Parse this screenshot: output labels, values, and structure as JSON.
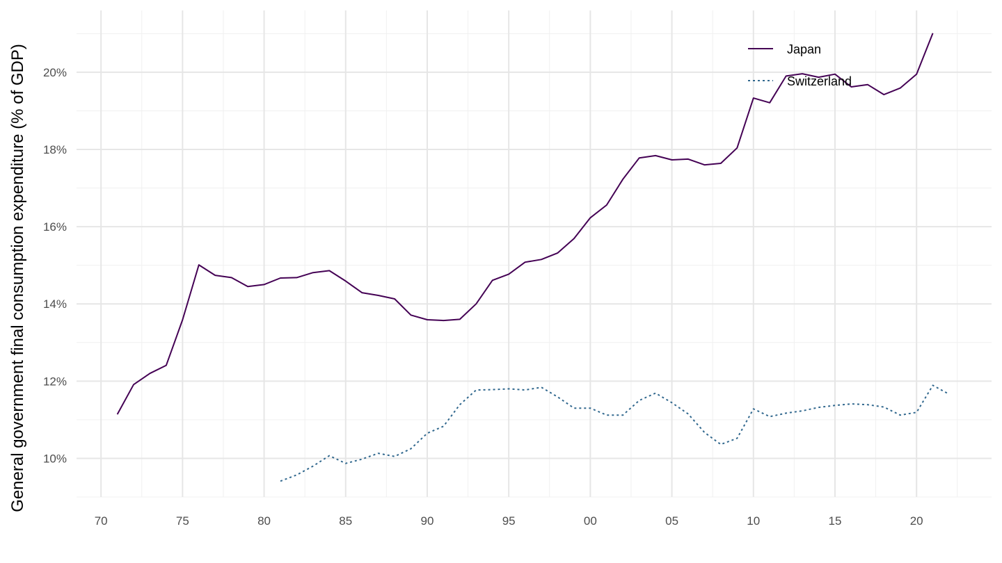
{
  "chart_data": {
    "type": "line",
    "title": "",
    "xlabel": "",
    "ylabel": "General government final consumption expenditure (% of GDP)",
    "xlim": [
      1968.5,
      2024.6
    ],
    "ylim": [
      9.0,
      21.6
    ],
    "x_ticks": [
      1970,
      1975,
      1980,
      1985,
      1990,
      1995,
      2000,
      2005,
      2010,
      2015,
      2020
    ],
    "x_tick_labels": [
      "70",
      "75",
      "80",
      "85",
      "90",
      "95",
      "00",
      "05",
      "10",
      "15",
      "20"
    ],
    "y_ticks": [
      10,
      12,
      14,
      16,
      18,
      20
    ],
    "y_tick_labels": [
      "10%",
      "12%",
      "14%",
      "16%",
      "18%",
      "20%"
    ],
    "grid": true,
    "legend_position": "top-right",
    "series": [
      {
        "name": "Japan",
        "color": "#440154",
        "dash": "solid",
        "x": [
          1971,
          1972,
          1973,
          1974,
          1975,
          1976,
          1977,
          1978,
          1979,
          1980,
          1981,
          1982,
          1983,
          1984,
          1985,
          1986,
          1987,
          1988,
          1989,
          1990,
          1991,
          1992,
          1993,
          1994,
          1995,
          1996,
          1997,
          1998,
          1999,
          2000,
          2001,
          2002,
          2003,
          2004,
          2005,
          2006,
          2007,
          2008,
          2009,
          2010,
          2011,
          2012,
          2013,
          2014,
          2015,
          2016,
          2017,
          2018,
          2019,
          2020,
          2021
        ],
        "values": [
          11.14,
          11.91,
          12.2,
          12.41,
          13.59,
          15.01,
          14.74,
          14.68,
          14.45,
          14.5,
          14.67,
          14.68,
          14.81,
          14.86,
          14.59,
          14.29,
          14.22,
          14.13,
          13.71,
          13.59,
          13.57,
          13.6,
          14.0,
          14.61,
          14.77,
          15.08,
          15.15,
          15.32,
          15.69,
          16.23,
          16.56,
          17.23,
          17.78,
          17.84,
          17.73,
          17.75,
          17.6,
          17.64,
          18.04,
          19.33,
          19.21,
          19.9,
          19.96,
          19.87,
          19.95,
          19.62,
          19.68,
          19.42,
          19.59,
          19.95,
          21.01
        ]
      },
      {
        "name": "Switzerland",
        "color": "#31688e",
        "dash": "dotted",
        "x": [
          1981,
          1982,
          1983,
          1984,
          1985,
          1986,
          1987,
          1988,
          1989,
          1990,
          1991,
          1992,
          1993,
          1994,
          1995,
          1996,
          1997,
          1998,
          1999,
          2000,
          2001,
          2002,
          2003,
          2004,
          2005,
          2006,
          2007,
          2008,
          2009,
          2010,
          2011,
          2012,
          2013,
          2014,
          2015,
          2016,
          2017,
          2018,
          2019,
          2020,
          2021,
          2022
        ],
        "values": [
          9.41,
          9.57,
          9.8,
          10.07,
          9.87,
          9.98,
          10.13,
          10.05,
          10.25,
          10.65,
          10.83,
          11.39,
          11.77,
          11.78,
          11.8,
          11.77,
          11.84,
          11.59,
          11.3,
          11.3,
          11.12,
          11.12,
          11.5,
          11.69,
          11.44,
          11.15,
          10.67,
          10.36,
          10.52,
          11.28,
          11.08,
          11.17,
          11.23,
          11.32,
          11.37,
          11.41,
          11.39,
          11.33,
          11.12,
          11.19,
          11.89,
          11.66
        ]
      }
    ]
  }
}
